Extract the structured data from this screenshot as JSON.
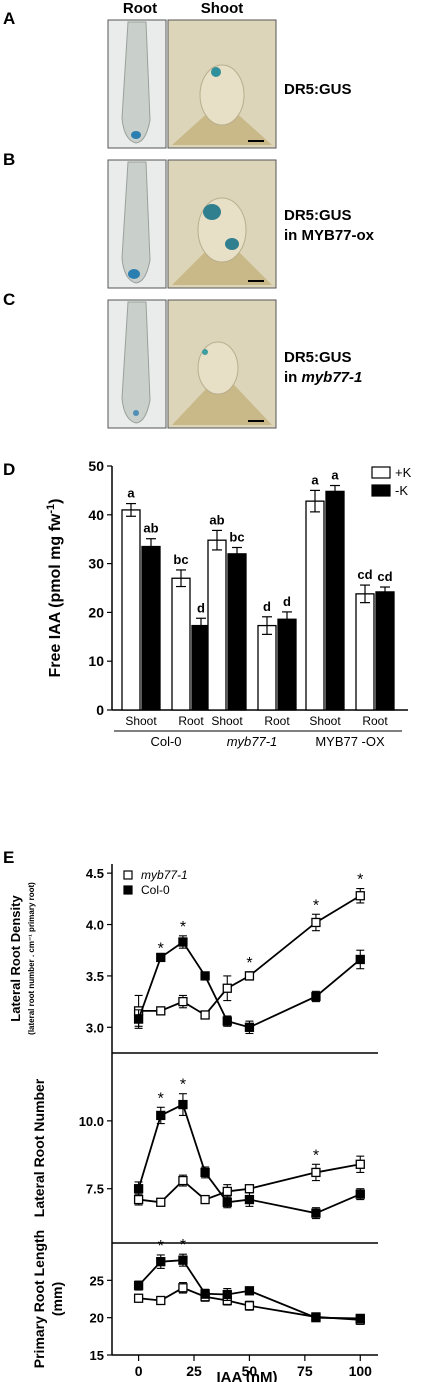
{
  "panel_labels": [
    "A",
    "B",
    "C",
    "D",
    "E"
  ],
  "images": {
    "col_headers": [
      "Root",
      "Shoot"
    ],
    "rows": [
      {
        "label_lines": [
          "DR5:GUS"
        ],
        "italic_part": ""
      },
      {
        "label_lines": [
          "DR5:GUS",
          "in MYB77-ox"
        ],
        "italic_part": ""
      },
      {
        "label_lines": [
          "DR5:GUS",
          "in "
        ],
        "italic_part": "myb77-1"
      }
    ]
  },
  "chart_data": [
    {
      "type": "bar",
      "panel": "D",
      "ylabel": "Free IAA (pmol mg fw",
      "ylabel_sup": "-1",
      "ylabel_close": ")",
      "ylim": [
        0,
        50
      ],
      "yticks": [
        0,
        10,
        20,
        30,
        40,
        50
      ],
      "legend_position": "top-right",
      "series": [
        {
          "name": "+K",
          "color": "#ffffff"
        },
        {
          "name": "-K",
          "color": "#000000"
        }
      ],
      "groups": [
        {
          "name": "Col-0",
          "italic": false,
          "subgroups": [
            {
              "name": "Shoot",
              "values": [
                41,
                33.5
              ],
              "errors": [
                1.3,
                1.6
              ],
              "letters": [
                "a",
                "ab"
              ]
            },
            {
              "name": "Root",
              "values": [
                27,
                17.3
              ],
              "errors": [
                1.7,
                1.5
              ],
              "letters": [
                "bc",
                "d"
              ]
            }
          ]
        },
        {
          "name": "myb77-1",
          "italic": true,
          "subgroups": [
            {
              "name": "Shoot",
              "values": [
                34.8,
                32
              ],
              "errors": [
                2.0,
                1.3
              ],
              "letters": [
                "ab",
                "bc"
              ]
            },
            {
              "name": "Root",
              "values": [
                17.3,
                18.6
              ],
              "errors": [
                1.8,
                1.5
              ],
              "letters": [
                "d",
                "d"
              ]
            }
          ]
        },
        {
          "name": "MYB77 -OX",
          "italic": false,
          "subgroups": [
            {
              "name": "Shoot",
              "values": [
                42.8,
                44.8
              ],
              "errors": [
                2.2,
                1.2
              ],
              "letters": [
                "a",
                "a"
              ]
            },
            {
              "name": "Root",
              "values": [
                23.8,
                24.2
              ],
              "errors": [
                1.8,
                1.0
              ],
              "letters": [
                "cd",
                "cd"
              ]
            }
          ]
        }
      ]
    },
    {
      "type": "line",
      "panel": "E",
      "xlabel": "IAA (nM)",
      "xticks": [
        0,
        25,
        50,
        75,
        100
      ],
      "xlim": [
        -12,
        108
      ],
      "series_legend": [
        {
          "name": "myb77-1",
          "marker": "open-square",
          "italic": true
        },
        {
          "name": "Col-0",
          "marker": "filled-square",
          "italic": false
        }
      ],
      "subplots": [
        {
          "ylabel": "Lateral Root Density",
          "ylabel_sub": "(lateral root number . cm⁻¹ primary root)",
          "ylim": [
            2.75,
            4.55
          ],
          "yticks": [
            3.0,
            3.5,
            4.0,
            4.5
          ],
          "ytick_labels": [
            "3.0",
            "3.5",
            "4.0",
            "4.5"
          ],
          "x": [
            0,
            10,
            20,
            30,
            40,
            50,
            80,
            100
          ],
          "series": [
            {
              "name": "myb77-1",
              "values": [
                3.16,
                3.16,
                3.25,
                3.12,
                3.38,
                3.5,
                4.02,
                4.28
              ],
              "errors": [
                0.15,
                0.0,
                0.06,
                0.0,
                0.12,
                0.04,
                0.08,
                0.07
              ]
            },
            {
              "name": "Col-0",
              "values": [
                3.08,
                3.68,
                3.83,
                3.5,
                3.06,
                3.0,
                3.3,
                3.66
              ],
              "errors": [
                0.09,
                0.0,
                0.06,
                0.0,
                0.05,
                0.06,
                0.05,
                0.09
              ]
            }
          ],
          "asterisks_at": [
            10,
            20,
            50,
            80,
            100
          ]
        },
        {
          "ylabel": "Lateral Root Number",
          "ylim": [
            5.5,
            12.5
          ],
          "yticks": [
            7.5,
            10.0
          ],
          "ytick_labels": [
            "7.5",
            "10.0"
          ],
          "x": [
            0,
            10,
            20,
            30,
            40,
            50,
            80,
            100
          ],
          "series": [
            {
              "name": "myb77-1",
              "values": [
                7.1,
                7.0,
                7.8,
                7.1,
                7.4,
                7.5,
                8.1,
                8.4
              ],
              "errors": [
                0.2,
                0.1,
                0.2,
                0.0,
                0.25,
                0.1,
                0.3,
                0.3
              ]
            },
            {
              "name": "Col-0",
              "values": [
                7.5,
                10.2,
                10.6,
                8.1,
                7.0,
                7.1,
                6.6,
                7.3
              ],
              "errors": [
                0.25,
                0.3,
                0.4,
                0.2,
                0.2,
                0.25,
                0.2,
                0.2
              ]
            }
          ],
          "asterisks_at": [
            10,
            20,
            80
          ]
        },
        {
          "ylabel": "Primary Root Length",
          "ylabel_sub": "(mm)",
          "ylim": [
            15,
            30
          ],
          "yticks": [
            15,
            20,
            25
          ],
          "ytick_labels": [
            "15",
            "20",
            "25"
          ],
          "x": [
            0,
            10,
            20,
            30,
            40,
            50,
            80,
            100
          ],
          "series": [
            {
              "name": "myb77-1",
              "values": [
                22.6,
                22.3,
                24.0,
                22.8,
                22.3,
                21.6,
                20.1,
                19.7
              ],
              "errors": [
                0.5,
                0.5,
                0.7,
                0.6,
                0.6,
                0.6,
                0.5,
                0.6
              ]
            },
            {
              "name": "Col-0",
              "values": [
                24.3,
                27.5,
                27.7,
                23.2,
                23.1,
                23.6,
                20.0,
                19.9
              ],
              "errors": [
                0.6,
                0.9,
                0.8,
                0.6,
                0.8,
                0.4,
                0.5,
                0.5
              ]
            }
          ],
          "asterisks_at": [
            10,
            20
          ]
        }
      ]
    }
  ]
}
